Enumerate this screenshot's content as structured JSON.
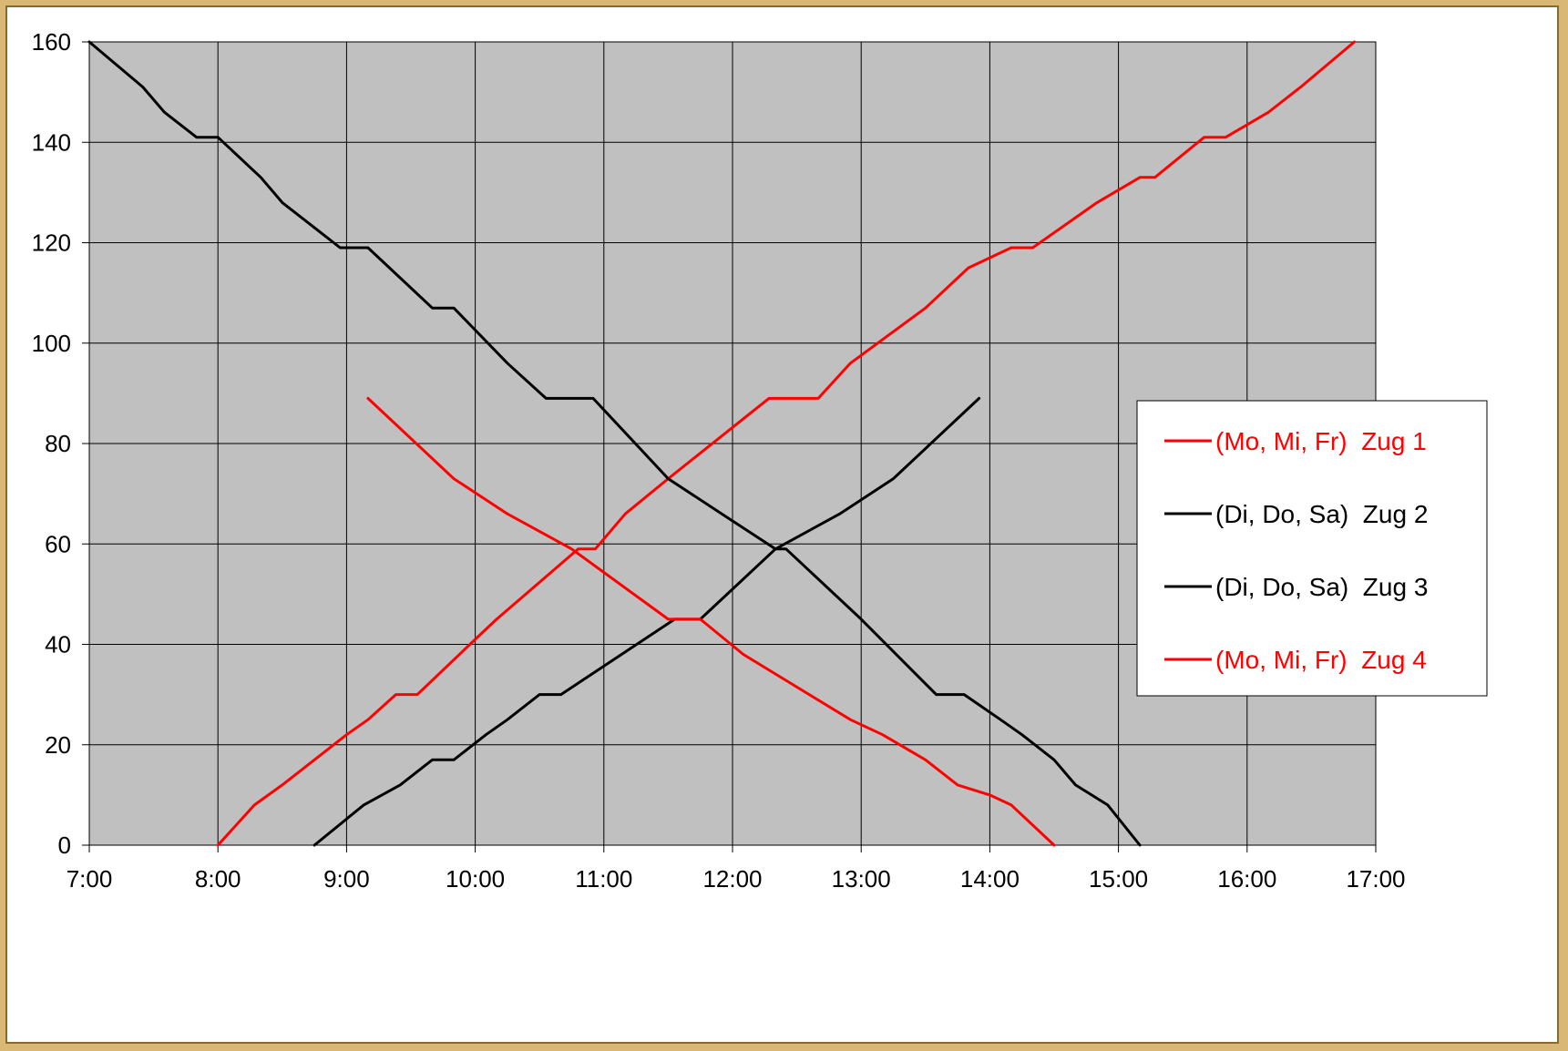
{
  "chart_data": {
    "type": "line",
    "title": "",
    "xlabel": "",
    "ylabel": "",
    "xlim": [
      "7:00",
      "17:00"
    ],
    "ylim": [
      0,
      160
    ],
    "x_ticks": [
      "7:00",
      "8:00",
      "9:00",
      "10:00",
      "11:00",
      "12:00",
      "13:00",
      "14:00",
      "15:00",
      "16:00",
      "17:00"
    ],
    "y_ticks": [
      "0",
      "20",
      "40",
      "60",
      "80",
      "100",
      "120",
      "140",
      "160"
    ],
    "grid": true,
    "plot_background": "#c0c0c0",
    "legend_position": "right",
    "series": [
      {
        "name": "(Mo, Mi, Fr)  Zug 1",
        "color": "#ff0000",
        "points": [
          [
            "8:00",
            0
          ],
          [
            "8:17",
            8
          ],
          [
            "8:30",
            12
          ],
          [
            "8:45",
            17
          ],
          [
            "9:00",
            22
          ],
          [
            "9:10",
            25
          ],
          [
            "9:23",
            30
          ],
          [
            "9:33",
            30
          ],
          [
            "10:00",
            41
          ],
          [
            "10:10",
            45
          ],
          [
            "10:48",
            59
          ],
          [
            "10:56",
            59
          ],
          [
            "11:10",
            66
          ],
          [
            "11:30",
            73
          ],
          [
            "12:17",
            89
          ],
          [
            "12:40",
            89
          ],
          [
            "12:55",
            96
          ],
          [
            "13:30",
            107
          ],
          [
            "13:50",
            115
          ],
          [
            "14:10",
            119
          ],
          [
            "14:20",
            119
          ],
          [
            "14:50",
            128
          ],
          [
            "15:10",
            133
          ],
          [
            "15:17",
            133
          ],
          [
            "15:40",
            141
          ],
          [
            "15:50",
            141
          ],
          [
            "16:10",
            146
          ],
          [
            "16:25",
            151
          ],
          [
            "16:50",
            160
          ]
        ]
      },
      {
        "name": "(Di, Do, Sa)  Zug 2",
        "color": "#000000",
        "points": [
          [
            "7:00",
            160
          ],
          [
            "7:25",
            151
          ],
          [
            "7:35",
            146
          ],
          [
            "7:50",
            141
          ],
          [
            "8:00",
            141
          ],
          [
            "8:20",
            133
          ],
          [
            "8:30",
            128
          ],
          [
            "8:57",
            119
          ],
          [
            "9:10",
            119
          ],
          [
            "9:20",
            115
          ],
          [
            "9:40",
            107
          ],
          [
            "9:50",
            107
          ],
          [
            "10:15",
            96
          ],
          [
            "10:33",
            89
          ],
          [
            "10:55",
            89
          ],
          [
            "11:30",
            73
          ],
          [
            "11:55",
            66
          ],
          [
            "12:20",
            59
          ],
          [
            "12:25",
            59
          ],
          [
            "13:00",
            45
          ],
          [
            "13:35",
            30
          ],
          [
            "13:48",
            30
          ],
          [
            "14:05",
            25
          ],
          [
            "14:15",
            22
          ],
          [
            "14:30",
            17
          ],
          [
            "14:40",
            12
          ],
          [
            "14:55",
            8
          ],
          [
            "15:10",
            0
          ]
        ]
      },
      {
        "name": "(Di, Do, Sa)  Zug 3",
        "color": "#000000",
        "points": [
          [
            "8:45",
            0
          ],
          [
            "9:08",
            8
          ],
          [
            "9:25",
            12
          ],
          [
            "9:40",
            17
          ],
          [
            "9:50",
            17
          ],
          [
            "10:05",
            22
          ],
          [
            "10:15",
            25
          ],
          [
            "10:30",
            30
          ],
          [
            "10:40",
            30
          ],
          [
            "11:33",
            45
          ],
          [
            "11:45",
            45
          ],
          [
            "12:20",
            59
          ],
          [
            "12:50",
            66
          ],
          [
            "13:15",
            73
          ],
          [
            "13:55",
            89
          ]
        ]
      },
      {
        "name": "(Mo, Mi, Fr)  Zug 4",
        "color": "#ff0000",
        "points": [
          [
            "9:10",
            89
          ],
          [
            "9:50",
            73
          ],
          [
            "10:15",
            66
          ],
          [
            "10:45",
            59
          ],
          [
            "11:30",
            45
          ],
          [
            "11:45",
            45
          ],
          [
            "12:05",
            38
          ],
          [
            "12:55",
            25
          ],
          [
            "13:10",
            22
          ],
          [
            "13:30",
            17
          ],
          [
            "13:45",
            12
          ],
          [
            "14:00",
            10
          ],
          [
            "14:10",
            8
          ],
          [
            "14:30",
            0
          ]
        ]
      }
    ]
  }
}
